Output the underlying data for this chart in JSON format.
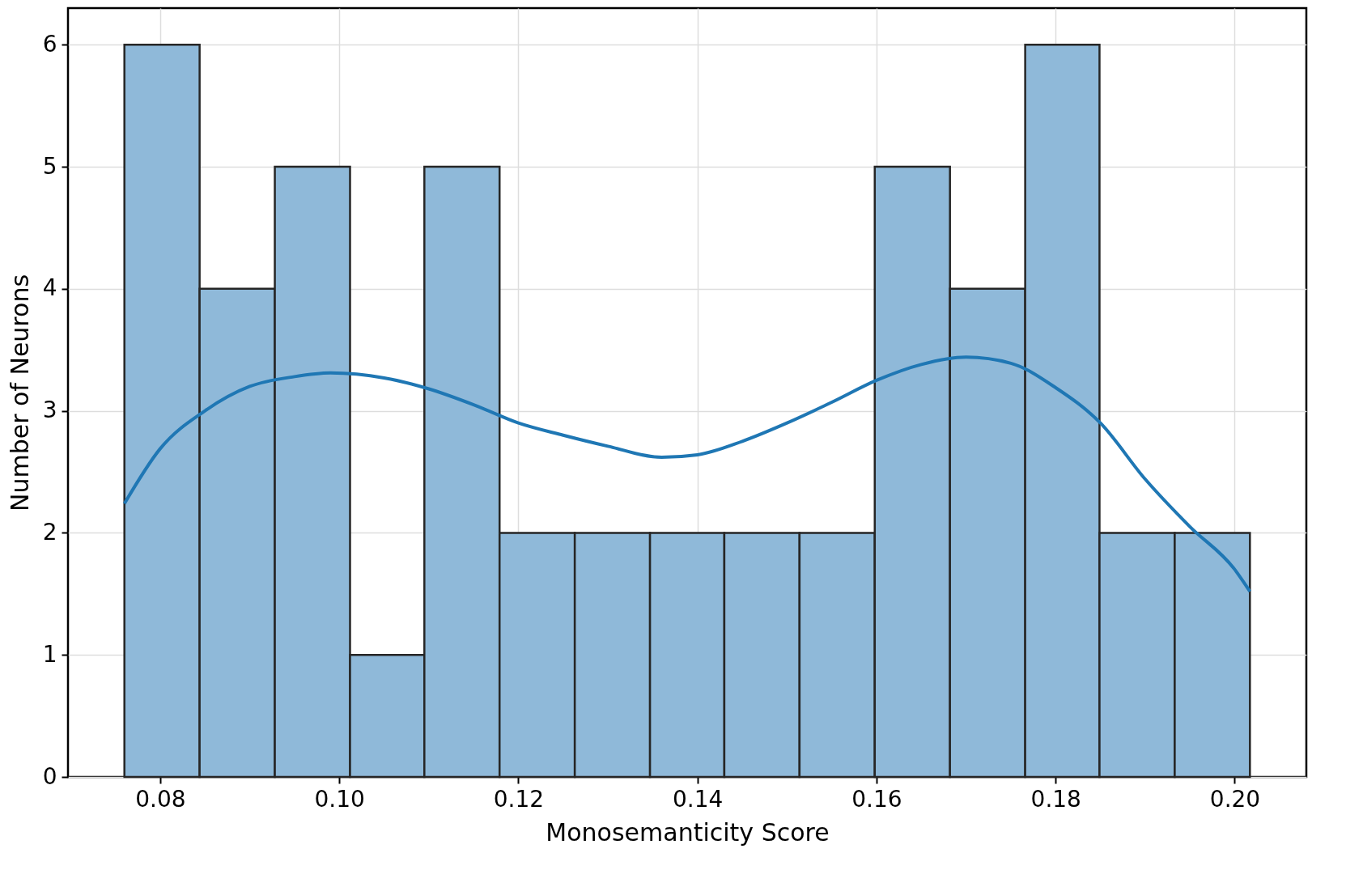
{
  "chart_data": {
    "type": "histogram",
    "xlabel": "Monosemanticity Score",
    "ylabel": "Number of Neurons",
    "bins": [
      0.076,
      0.0844,
      0.0928,
      0.1012,
      0.1095,
      0.1179,
      0.1263,
      0.1347,
      0.143,
      0.1514,
      0.1598,
      0.1682,
      0.1766,
      0.1849,
      0.1933,
      0.2017
    ],
    "series": [
      {
        "color": "#8fb9d9",
        "values": [
          6,
          4,
          5,
          1,
          5,
          2,
          2,
          2,
          2,
          2,
          5,
          4,
          6,
          2,
          2
        ]
      },
      {
        "type": "line",
        "color": "#1f77b4",
        "x": [
          0.076,
          0.08,
          0.085,
          0.09,
          0.095,
          0.099,
          0.105,
          0.11,
          0.115,
          0.12,
          0.125,
          0.13,
          0.136,
          0.14,
          0.145,
          0.15,
          0.155,
          0.16,
          0.165,
          0.17,
          0.175,
          0.18,
          0.185,
          0.19,
          0.195,
          0.2,
          0.2017
        ],
        "values": [
          2.24,
          2.69,
          3.0,
          3.2,
          3.28,
          3.31,
          3.27,
          3.18,
          3.05,
          2.9,
          2.8,
          2.71,
          2.62,
          2.64,
          2.75,
          2.9,
          3.07,
          3.25,
          3.38,
          3.44,
          3.39,
          3.19,
          2.9,
          2.44,
          2.05,
          1.7,
          1.52
        ]
      }
    ],
    "xlim": [
      0.0697,
      0.208
    ],
    "ylim": [
      0,
      6.3
    ],
    "xticks": [
      {
        "value": 0.08,
        "label": "0.08"
      },
      {
        "value": 0.1,
        "label": "0.10"
      },
      {
        "value": 0.12,
        "label": "0.12"
      },
      {
        "value": 0.14,
        "label": "0.14"
      },
      {
        "value": 0.16,
        "label": "0.16"
      },
      {
        "value": 0.18,
        "label": "0.18"
      },
      {
        "value": 0.2,
        "label": "0.20"
      }
    ],
    "yticks": [
      0,
      1,
      2,
      3,
      4,
      5,
      6
    ],
    "grid": true
  }
}
